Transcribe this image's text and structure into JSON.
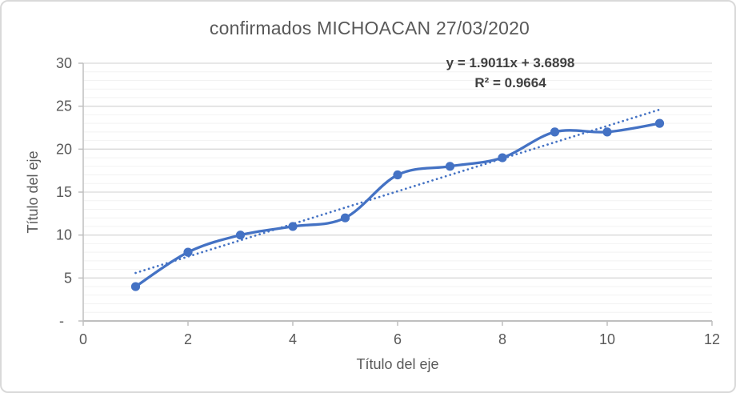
{
  "chart_data": {
    "type": "line",
    "title": "confirmados MICHOACAN 27/03/2020",
    "xlabel": "Título del eje",
    "ylabel": "Título del eje",
    "x": [
      1,
      2,
      3,
      4,
      5,
      6,
      7,
      8,
      9,
      10,
      11
    ],
    "values": [
      4,
      8,
      10,
      11,
      12,
      17,
      18,
      19,
      22,
      22,
      23
    ],
    "trendline": {
      "type": "linear",
      "slope": 1.9011,
      "intercept": 3.6898,
      "x_start": 1,
      "x_end": 11,
      "equation_label": "y = 1.9011x + 3.6898",
      "r2_label": "R² = 0.9664",
      "style": "dotted"
    },
    "xlim": [
      0,
      12
    ],
    "ylim": [
      0,
      30
    ],
    "x_ticks": [
      0,
      2,
      4,
      6,
      8,
      10,
      12
    ],
    "x_tick_labels": [
      "0",
      "2",
      "4",
      "6",
      "8",
      "10",
      "12"
    ],
    "y_ticks": [
      0,
      5,
      10,
      15,
      20,
      25,
      30
    ],
    "y_tick_labels": [
      "-",
      "5",
      "10",
      "15",
      "20",
      "25",
      "30"
    ],
    "y_minor_step": 1,
    "grid": {
      "horizontal_major": true,
      "horizontal_minor": true,
      "vertical": false
    },
    "legend": "none",
    "marker": "circle",
    "line_smoothed": true,
    "colors": {
      "series": "#4472C4",
      "trendline": "#4472C4",
      "major_gridline": "#D9D9D9",
      "minor_gridline": "#F2F2F2",
      "axis_line": "#BFBFBF",
      "tick_text": "#595959",
      "title_text": "#595959",
      "equation_text": "#404040",
      "chart_border": "#D9D9D9"
    }
  }
}
